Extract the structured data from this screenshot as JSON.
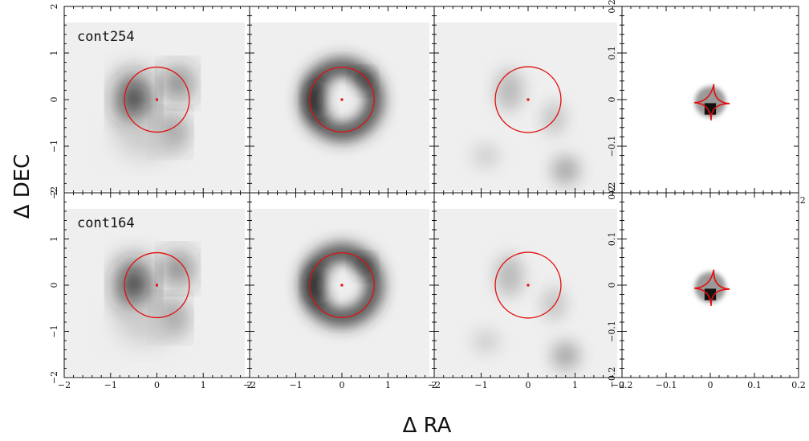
{
  "figure": {
    "xlabel": "Δ RA",
    "ylabel": "Δ DEC"
  },
  "rows": [
    {
      "label": "cont254"
    },
    {
      "label": "cont164"
    }
  ],
  "columns": [
    {
      "kind": "image",
      "xlim": [
        -2,
        2
      ],
      "ylim": [
        -2,
        2
      ],
      "ticks": [
        -2,
        -1,
        0,
        1,
        2
      ],
      "tick_labels": [
        "−2",
        "−1",
        "0",
        "1",
        "2"
      ]
    },
    {
      "kind": "model",
      "xlim": [
        -2,
        2
      ],
      "ylim": [
        -2,
        2
      ],
      "ticks": [
        -2,
        -1,
        0,
        1,
        2
      ],
      "tick_labels": [
        "−2",
        "−1",
        "0",
        "1",
        "2"
      ]
    },
    {
      "kind": "residual",
      "xlim": [
        -2,
        2
      ],
      "ylim": [
        -2,
        2
      ],
      "ticks": [
        -2,
        -1,
        0,
        1,
        2
      ],
      "tick_labels": [
        "−2",
        "−1",
        "0",
        "1",
        "2"
      ]
    },
    {
      "kind": "source",
      "xlim": [
        -0.2,
        0.2
      ],
      "ylim": [
        -0.2,
        0.2
      ],
      "ticks": [
        -0.2,
        -0.1,
        0,
        0.1,
        0.2
      ],
      "tick_labels": [
        "−0.2",
        "−0.1",
        "0",
        "0.1",
        "0.2"
      ]
    }
  ],
  "chart_data": {
    "type": "heatmap",
    "critical_curve_radius": 0.7,
    "colors": {
      "curves": "#e01010",
      "frame": "#111111"
    }
  }
}
